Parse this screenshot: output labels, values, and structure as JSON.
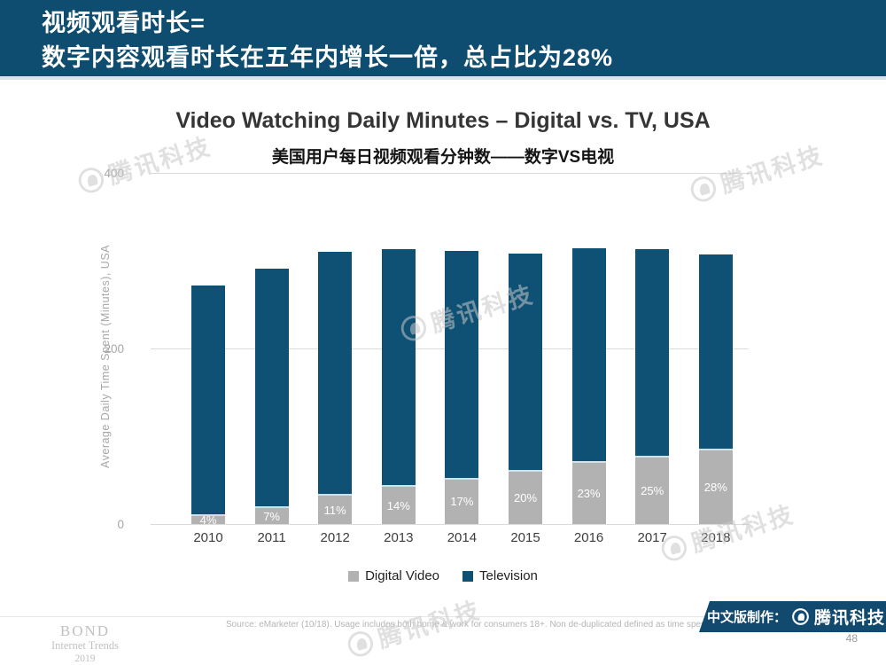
{
  "header": {
    "line1": "视频观看时长=",
    "line2": "数字内容观看时长在五年内增长一倍，总占比为28%"
  },
  "chart": {
    "title": "Video Watching Daily Minutes – Digital vs. TV, USA",
    "subtitle": "美国用户每日视频观看分钟数——数字VS电视",
    "y_axis_label": "Average Daily Time Spent (Minutes), USA",
    "y_ticks": [
      "400",
      "200",
      "0"
    ],
    "legend": [
      {
        "label": "Digital Video",
        "color": "#b2b2b2"
      },
      {
        "label": "Television",
        "color": "#0e5174"
      }
    ]
  },
  "chart_data": {
    "type": "bar",
    "stacked": true,
    "title": "Video Watching Daily Minutes – Digital vs. TV, USA",
    "subtitle": "美国用户每日视频观看分钟数——数字VS电视",
    "xlabel": "",
    "ylabel": "Average Daily Time Spent (Minutes), USA",
    "ylim": [
      0,
      400
    ],
    "yticks": [
      0,
      200,
      400
    ],
    "grid": "horizontal",
    "legend_position": "bottom",
    "categories": [
      "2010",
      "2011",
      "2012",
      "2013",
      "2014",
      "2015",
      "2016",
      "2017",
      "2018"
    ],
    "series": [
      {
        "name": "Digital Video",
        "color": "#b2b2b2",
        "values": [
          11,
          20,
          34,
          44,
          53,
          62,
          72,
          78,
          86
        ]
      },
      {
        "name": "Television",
        "color": "#0e5174",
        "values": [
          261,
          271,
          276,
          269,
          258,
          246,
          242,
          235,
          221
        ]
      }
    ],
    "totals": [
      272,
      291,
      310,
      313,
      311,
      308,
      314,
      313,
      307
    ],
    "bar_labels": [
      "4%",
      "7%",
      "11%",
      "14%",
      "17%",
      "20%",
      "23%",
      "25%",
      "28%"
    ]
  },
  "watermark": {
    "text": "腾讯科技"
  },
  "footer": {
    "logo": {
      "line1": "BOND",
      "line2": "Internet Trends",
      "line3": "2019"
    },
    "source": "Source: eMarketer (10/18). Usage includes both home & work for consumers 18+. Non de-duplicated defined as time spent with each medium.",
    "banner": {
      "prefix": "中文版制作：",
      "brand": "腾讯科技"
    },
    "page_number": "48"
  },
  "colors": {
    "header_bg": "#0f4d70",
    "banner_bg": "#114a6e",
    "television": "#0e5174",
    "digital_video": "#b2b2b2",
    "gridline": "#dbdbdb"
  }
}
